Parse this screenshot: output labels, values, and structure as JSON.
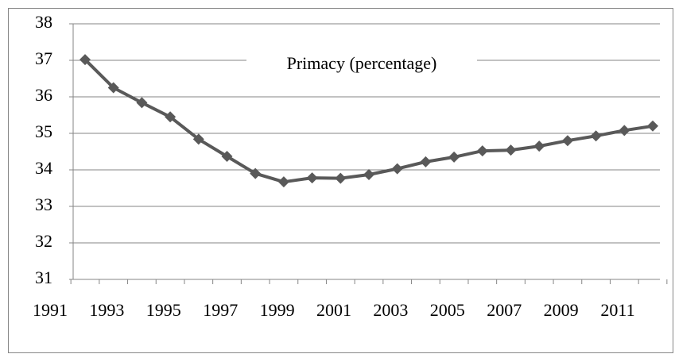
{
  "chart_data": {
    "type": "line",
    "title": "Primacy (percentage)",
    "categories": [
      "1991",
      null,
      "1993",
      null,
      "1995",
      null,
      "1997",
      null,
      "1999",
      null,
      "2001",
      null,
      "2003",
      null,
      "2005",
      null,
      "2007",
      null,
      "2009",
      null,
      "2011"
    ],
    "series": [
      {
        "name": "Primacy (percentage)",
        "color": "#595959",
        "values": [
          37.02,
          36.25,
          35.84,
          35.45,
          34.84,
          34.37,
          33.9,
          33.67,
          33.78,
          33.77,
          33.87,
          34.03,
          34.22,
          34.35,
          34.52,
          34.54,
          34.65,
          34.8,
          34.93,
          35.08,
          35.2
        ]
      }
    ],
    "ylim": [
      31,
      38
    ],
    "yticks": [
      31,
      32,
      33,
      34,
      35,
      36,
      37,
      38
    ],
    "grid": true
  }
}
